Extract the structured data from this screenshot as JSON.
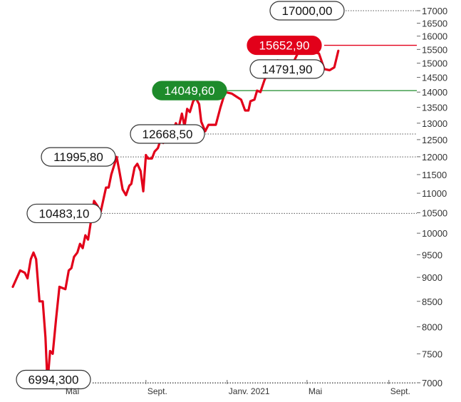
{
  "chart_data": {
    "type": "line",
    "title": "",
    "xlabel": "",
    "ylabel": "",
    "ylim": [
      7000,
      17000
    ],
    "y_scale": "log",
    "y_axis_position": "right",
    "y_ticks": [
      7000,
      7500,
      8000,
      8500,
      9000,
      9500,
      10000,
      10500,
      11000,
      11500,
      12000,
      12500,
      13000,
      13500,
      14000,
      14500,
      15000,
      15500,
      16000,
      16500,
      17000
    ],
    "y_tick_labels": [
      "7000",
      "7500",
      "8000",
      "8500",
      "9000",
      "9500",
      "10000",
      "10500",
      "11000",
      "11500",
      "12000",
      "12500",
      "13000",
      "13500",
      "14000",
      "14500",
      "15000",
      "15500",
      "16000",
      "16500",
      "17000"
    ],
    "x_tick_labels": [
      "Mai",
      "Sept.",
      "Janv. 2021",
      "Mai",
      "Sept."
    ],
    "x_range": [
      "2020-02-14",
      "2021-10-13"
    ],
    "x_ticks": [
      "2020-05-01",
      "2020-09-01",
      "2021-01-01",
      "2021-05-01",
      "2021-09-01"
    ],
    "grid": false,
    "legend": "none",
    "series": [
      {
        "color": "#e2001a",
        "points": [
          [
            "2020-02-14",
            8800
          ],
          [
            "2020-02-25",
            9150
          ],
          [
            "2020-03-03",
            9100
          ],
          [
            "2020-03-07",
            8980
          ],
          [
            "2020-03-12",
            9400
          ],
          [
            "2020-03-16",
            9550
          ],
          [
            "2020-03-20",
            9400
          ],
          [
            "2020-03-25",
            8500
          ],
          [
            "2020-03-30",
            8500
          ],
          [
            "2020-04-03",
            7800
          ],
          [
            "2020-04-06",
            6994.3
          ],
          [
            "2020-04-10",
            7550
          ],
          [
            "2020-04-14",
            7500
          ],
          [
            "2020-04-19",
            8150
          ],
          [
            "2020-04-24",
            8800
          ],
          [
            "2020-05-03",
            8750
          ],
          [
            "2020-05-08",
            9150
          ],
          [
            "2020-05-12",
            9200
          ],
          [
            "2020-05-16",
            9450
          ],
          [
            "2020-05-21",
            9550
          ],
          [
            "2020-05-25",
            9750
          ],
          [
            "2020-05-29",
            9650
          ],
          [
            "2020-06-02",
            9950
          ],
          [
            "2020-06-06",
            9850
          ],
          [
            "2020-06-11",
            10350
          ],
          [
            "2020-06-15",
            10800
          ],
          [
            "2020-06-20",
            10680
          ],
          [
            "2020-06-25",
            10520
          ],
          [
            "2020-07-03",
            11150
          ],
          [
            "2020-07-07",
            11150
          ],
          [
            "2020-07-11",
            11500
          ],
          [
            "2020-07-16",
            11800
          ],
          [
            "2020-07-19",
            11995.8
          ],
          [
            "2020-07-23",
            11600
          ],
          [
            "2020-07-28",
            11100
          ],
          [
            "2020-08-02",
            10950
          ],
          [
            "2020-08-07",
            11200
          ],
          [
            "2020-08-10",
            11250
          ],
          [
            "2020-08-15",
            11700
          ],
          [
            "2020-08-19",
            11800
          ],
          [
            "2020-08-24",
            11600
          ],
          [
            "2020-08-28",
            11050
          ],
          [
            "2020-09-01",
            12050
          ],
          [
            "2020-09-04",
            11950
          ],
          [
            "2020-09-10",
            11950
          ],
          [
            "2020-09-14",
            12150
          ],
          [
            "2020-09-19",
            12250
          ],
          [
            "2020-09-23",
            12500
          ],
          [
            "2020-09-27",
            12400
          ],
          [
            "2020-10-02",
            12668.5
          ],
          [
            "2020-10-07",
            12700
          ],
          [
            "2020-10-12",
            12800
          ],
          [
            "2020-10-16",
            13000
          ],
          [
            "2020-10-20",
            12850
          ],
          [
            "2020-10-25",
            13300
          ],
          [
            "2020-10-29",
            12900
          ],
          [
            "2020-11-02",
            13450
          ],
          [
            "2020-11-06",
            13350
          ],
          [
            "2020-11-11",
            13700
          ],
          [
            "2020-11-15",
            13800
          ],
          [
            "2020-11-20",
            13600
          ],
          [
            "2020-11-23",
            13050
          ],
          [
            "2020-11-29",
            12750
          ],
          [
            "2020-12-04",
            12950
          ],
          [
            "2020-12-09",
            12950
          ],
          [
            "2020-12-15",
            12950
          ],
          [
            "2020-12-22",
            13500
          ],
          [
            "2020-12-29",
            14000
          ],
          [
            "2021-01-08",
            13950
          ],
          [
            "2021-01-15",
            13850
          ],
          [
            "2021-01-22",
            13750
          ],
          [
            "2021-01-28",
            13400
          ],
          [
            "2021-02-02",
            13400
          ],
          [
            "2021-02-05",
            13700
          ],
          [
            "2021-02-11",
            13750
          ],
          [
            "2021-02-15",
            14049.6
          ],
          [
            "2021-02-20",
            14000
          ],
          [
            "2021-02-26",
            14400
          ],
          [
            "2021-03-04",
            14700
          ],
          [
            "2021-03-09",
            14800
          ],
          [
            "2021-03-13",
            14750
          ],
          [
            "2021-03-18",
            15100
          ],
          [
            "2021-03-23",
            15000
          ],
          [
            "2021-03-28",
            15050
          ],
          [
            "2021-04-02",
            15050
          ],
          [
            "2021-04-12",
            15100
          ],
          [
            "2021-04-20",
            15500
          ],
          [
            "2021-04-27",
            15600
          ],
          [
            "2021-05-01",
            15652.9
          ],
          [
            "2021-05-05",
            15500
          ],
          [
            "2021-05-12",
            15400
          ],
          [
            "2021-05-19",
            15350
          ],
          [
            "2021-05-27",
            14791.9
          ],
          [
            "2021-06-04",
            14750
          ],
          [
            "2021-06-11",
            14850
          ],
          [
            "2021-06-17",
            15450
          ]
        ]
      }
    ],
    "reference_lines": [
      {
        "value": 15652.9,
        "label": "15652,90",
        "style": "solid",
        "color": "#e2001a",
        "label_bg": "#e2001a",
        "label_color": "#ffffff"
      },
      {
        "value": 14049.6,
        "label": "14049,60",
        "style": "solid",
        "color": "#1e8b2b",
        "label_bg": "#1e8b2b",
        "label_color": "#ffffff"
      },
      {
        "value": 17000,
        "label": "17000,00",
        "style": "dotted",
        "color": "#555555",
        "label_bg": "#ffffff",
        "label_color": "#111111"
      },
      {
        "value": 14791.9,
        "label": "14791,90",
        "style": "none",
        "color": "#555555",
        "label_bg": "#ffffff",
        "label_color": "#111111"
      },
      {
        "value": 12668.5,
        "label": "12668,50",
        "style": "dotted",
        "color": "#555555",
        "label_bg": "#ffffff",
        "label_color": "#111111"
      },
      {
        "value": 11995.8,
        "label": "11995,80",
        "style": "dotted",
        "color": "#555555",
        "label_bg": "#ffffff",
        "label_color": "#111111"
      },
      {
        "value": 10483.1,
        "label": "10483,10",
        "style": "dotted",
        "color": "#555555",
        "label_bg": "#ffffff",
        "label_color": "#111111"
      },
      {
        "value": 6994.3,
        "label": "6994,300",
        "style": "dotted",
        "color": "#555555",
        "label_bg": "#ffffff",
        "label_color": "#111111"
      }
    ]
  }
}
